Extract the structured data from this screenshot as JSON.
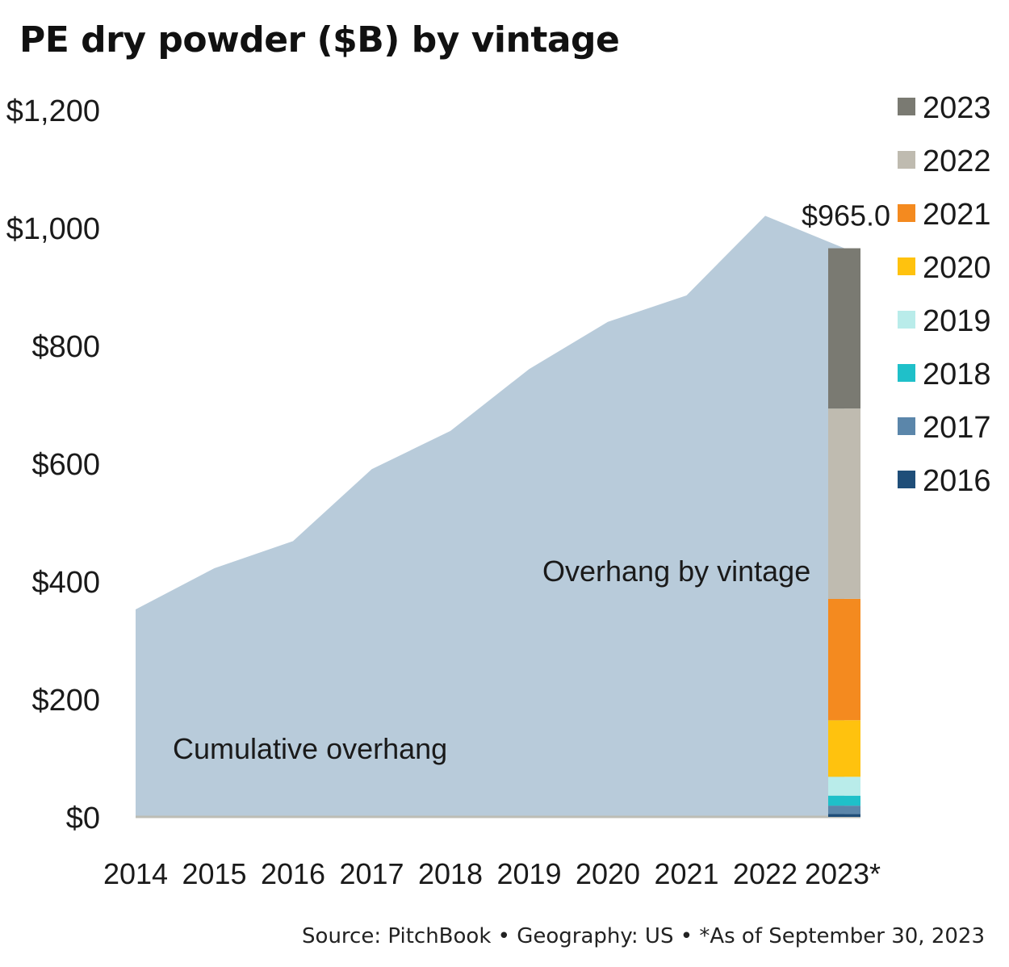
{
  "chart_data": {
    "type": "area",
    "title": "PE dry powder ($B) by vintage",
    "categories": [
      "2014",
      "2015",
      "2016",
      "2017",
      "2018",
      "2019",
      "2020",
      "2021",
      "2022",
      "2023*"
    ],
    "y_ticks": [
      "$0",
      "$200",
      "$400",
      "$600",
      "$800",
      "$1,000",
      "$1,200"
    ],
    "ylim": [
      0,
      1200
    ],
    "grid": false,
    "legend_position": "right",
    "series": [
      {
        "name": "Cumulative overhang",
        "type": "area",
        "color": "#b8cbda",
        "values": [
          352,
          422,
          468,
          590,
          655,
          760,
          840,
          885,
          1020,
          965
        ]
      }
    ],
    "stacked_bar": {
      "category": "2023*",
      "total": 965.0,
      "total_label": "$965.0",
      "segments": [
        {
          "name": "2016",
          "value": 5,
          "color": "#1f4e79"
        },
        {
          "name": "2017",
          "value": 14,
          "color": "#5b86aa"
        },
        {
          "name": "2018",
          "value": 17,
          "color": "#1fc0c9"
        },
        {
          "name": "2019",
          "value": 32,
          "color": "#b9ecea"
        },
        {
          "name": "2020",
          "value": 96,
          "color": "#ffc20e"
        },
        {
          "name": "2021",
          "value": 206,
          "color": "#f48a1f"
        },
        {
          "name": "2022",
          "value": 323,
          "color": "#bfbbb0"
        },
        {
          "name": "2023",
          "value": 272,
          "color": "#7a7a72"
        }
      ]
    },
    "legend": [
      "2023",
      "2022",
      "2021",
      "2020",
      "2019",
      "2018",
      "2017",
      "2016"
    ],
    "annotations": {
      "cumulative": "Cumulative overhang",
      "by_vintage": "Overhang by vintage"
    }
  },
  "source_note": "Source: PitchBook  •  Geography: US  •  *As of September 30, 2023"
}
